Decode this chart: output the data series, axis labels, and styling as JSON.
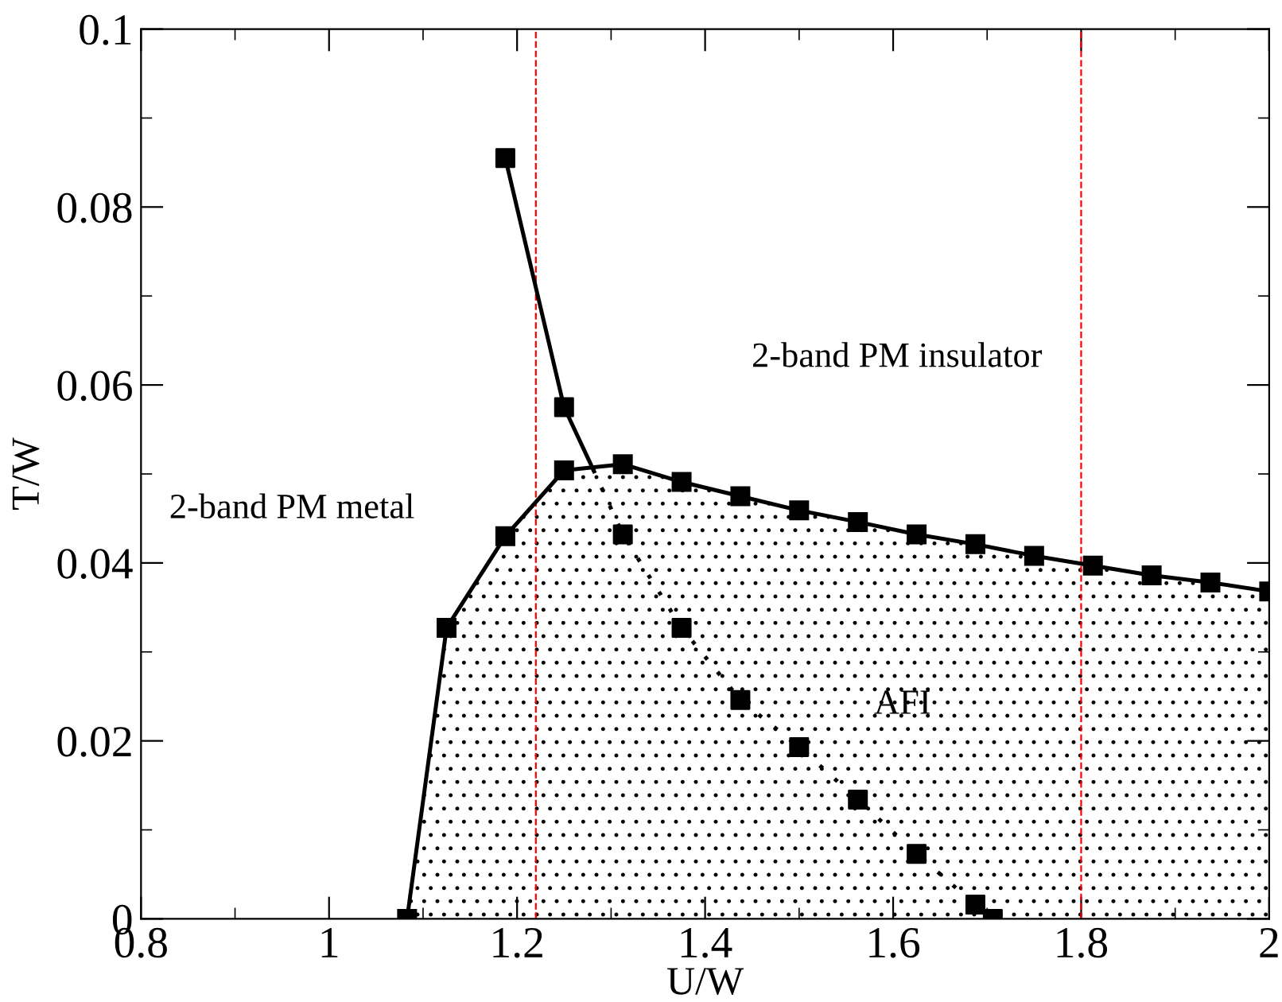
{
  "chart_data": {
    "type": "line",
    "xlabel": "U/W",
    "ylabel": "T/W",
    "xlim": [
      0.8,
      2
    ],
    "ylim": [
      0,
      0.1
    ],
    "xticks": [
      0.8,
      1,
      1.2,
      1.4,
      1.6,
      1.8,
      2
    ],
    "yticks": [
      0,
      0.02,
      0.04,
      0.06,
      0.08,
      0.1
    ],
    "grid": false,
    "series": [
      {
        "type": "area",
        "color": "#000000",
        "marker": "square",
        "line_style": "solid",
        "x": [
          1.083,
          1.125,
          1.1875,
          1.25,
          1.3125,
          1.375,
          1.4375,
          1.5,
          1.5625,
          1.625,
          1.6875,
          1.75,
          1.8125,
          1.875,
          1.9375,
          2.0
        ],
        "values": [
          0,
          0.0327,
          0.043,
          0.0504,
          0.0511,
          0.0491,
          0.0475,
          0.0459,
          0.0446,
          0.0432,
          0.0421,
          0.0408,
          0.0397,
          0.0386,
          0.0378,
          0.0368
        ]
      },
      {
        "color": "#000000",
        "marker": "none",
        "line_style": "solid",
        "x": [
          1.1875,
          1.25,
          1.281
        ],
        "values": [
          0.0855,
          0.0575,
          0.0505
        ]
      },
      {
        "color": "#000000",
        "marker": "none",
        "line_style": "dotted",
        "x": [
          1.281,
          1.3125,
          1.375,
          1.4375,
          1.5,
          1.5625,
          1.625,
          1.6875,
          1.706
        ],
        "values": [
          0.0505,
          0.0432,
          0.0327,
          0.0246,
          0.0193,
          0.0134,
          0.0073,
          0.0016,
          0
        ]
      },
      {
        "type": "scatter",
        "color": "#000000",
        "marker": "square",
        "x": [
          1.1875,
          1.25,
          1.3125,
          1.375,
          1.4375,
          1.5,
          1.5625,
          1.625,
          1.6875,
          1.706
        ],
        "values": [
          0.0855,
          0.0575,
          0.0432,
          0.0327,
          0.0246,
          0.0193,
          0.0134,
          0.0073,
          0.0016,
          0
        ]
      }
    ],
    "ref_lines": [
      {
        "axis": "x",
        "value": 1.22,
        "color": "#ff0000",
        "line_style": "dashed"
      },
      {
        "axis": "x",
        "value": 1.8,
        "color": "#ff0000",
        "line_style": "dashed"
      }
    ],
    "annotations": [
      "2-band PM metal",
      "2-band PM insulator",
      "AFI"
    ]
  }
}
